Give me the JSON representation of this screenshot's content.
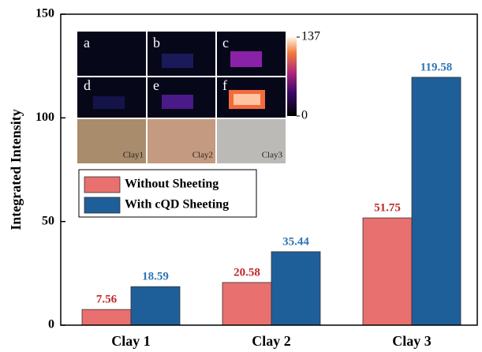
{
  "chart_data": {
    "type": "bar",
    "ylabel": "Integrated Intensity",
    "categories": [
      "Clay 1",
      "Clay 2",
      "Clay 3"
    ],
    "series": [
      {
        "name": "Without Sheeting",
        "color": "#e8706f",
        "label_color": "#c0282a",
        "values": [
          7.56,
          20.58,
          51.75
        ]
      },
      {
        "name": "With cQD Sheeting",
        "color": "#1f5f99",
        "label_color": "#2e75b6",
        "values": [
          18.59,
          35.44,
          119.58
        ]
      }
    ],
    "ylim": [
      0,
      150
    ],
    "yticks": [
      0,
      50,
      100,
      150
    ],
    "inset": {
      "panel_labels": [
        "a",
        "b",
        "c",
        "d",
        "e",
        "f"
      ],
      "sample_labels": [
        "Clay1",
        "Clay2",
        "Clay3"
      ],
      "colorbar_lim": [
        0,
        137
      ],
      "colorbar_ticks": [
        0,
        137
      ]
    }
  }
}
